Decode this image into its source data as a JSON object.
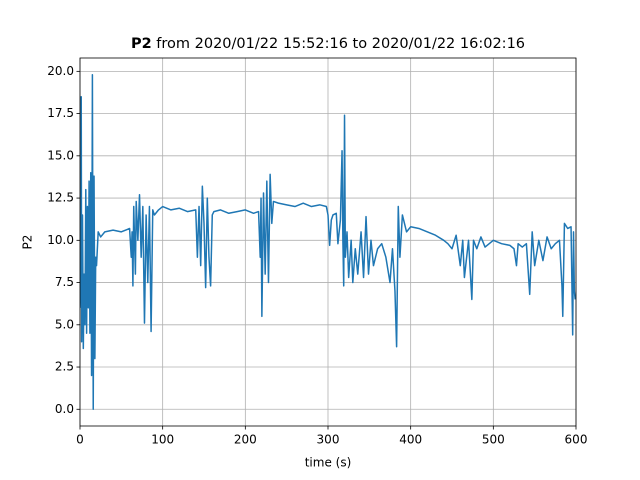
{
  "chart_data": {
    "type": "line",
    "title": {
      "bold": "P2",
      "rest": "from 2020/01/22 15:52:16 to 2020/01/22 16:02:16"
    },
    "xlabel": "time (s)",
    "ylabel": "P2",
    "xlim": [
      0,
      600
    ],
    "ylim": [
      -0.99,
      20.79
    ],
    "xticks": [
      0,
      100,
      200,
      300,
      400,
      500,
      600
    ],
    "yticks": [
      {
        "value": 0,
        "label": "0.0"
      },
      {
        "value": 2.5,
        "label": "2.5"
      },
      {
        "value": 5,
        "label": "5.0"
      },
      {
        "value": 7.5,
        "label": "7.5"
      },
      {
        "value": 10,
        "label": "10.0"
      },
      {
        "value": 12.5,
        "label": "12.5"
      },
      {
        "value": 15,
        "label": "15.0"
      },
      {
        "value": 17.5,
        "label": "17.5"
      },
      {
        "value": 20,
        "label": "20.0"
      }
    ],
    "grid": true,
    "series": [
      {
        "color": "#1f77b4",
        "x": [
          0,
          1,
          1.5,
          2,
          3,
          4,
          5,
          6,
          7,
          8,
          9,
          10,
          11,
          12,
          13,
          14,
          15,
          16,
          17,
          18,
          19,
          20,
          22,
          25,
          30,
          40,
          50,
          60,
          62,
          63,
          64,
          65,
          67,
          68,
          70,
          72,
          74,
          76,
          78,
          80,
          82,
          84,
          86,
          88,
          90,
          95,
          100,
          110,
          120,
          130,
          140,
          142,
          144,
          146,
          148,
          150,
          152,
          154,
          156,
          158,
          160,
          162,
          170,
          180,
          190,
          200,
          210,
          216,
          218,
          219,
          220,
          222,
          224,
          226,
          228,
          230,
          232,
          234,
          240,
          250,
          260,
          270,
          280,
          290,
          298,
          300,
          302,
          304,
          306,
          310,
          312,
          315,
          317,
          318,
          319,
          320,
          321,
          323,
          325,
          328,
          330,
          333,
          336,
          340,
          343,
          346,
          349,
          352,
          355,
          360,
          365,
          370,
          375,
          378,
          381,
          383,
          385,
          387,
          390,
          395,
          400,
          410,
          420,
          430,
          440,
          445,
          450,
          455,
          460,
          463,
          465,
          470,
          474,
          476,
          480,
          485,
          490,
          500,
          510,
          520,
          525,
          528,
          530,
          535,
          540,
          544,
          547,
          550,
          555,
          560,
          565,
          570,
          575,
          580,
          583,
          584,
          586,
          590,
          594,
          596,
          597,
          598,
          599
        ],
        "values": [
          6,
          9,
          18.5,
          4,
          11.5,
          3.6,
          8,
          5,
          13,
          4.5,
          12,
          6,
          13.5,
          4.5,
          14,
          2,
          19.8,
          0,
          13.8,
          3,
          9,
          8.5,
          10.5,
          10.2,
          10.5,
          10.6,
          10.5,
          10.7,
          9,
          10.5,
          7.3,
          12,
          8,
          12.3,
          10,
          12.7,
          9,
          12,
          5.1,
          11.5,
          7.5,
          12,
          4.6,
          11.8,
          11.5,
          11.8,
          12,
          11.8,
          11.9,
          11.7,
          11.8,
          9,
          12,
          8.5,
          13.2,
          11,
          7.2,
          12.5,
          9,
          7.3,
          11.5,
          11.7,
          11.8,
          11.6,
          11.7,
          11.8,
          11.6,
          11.7,
          9,
          12.5,
          5.5,
          12.8,
          8,
          13.5,
          7.5,
          13.9,
          11,
          12.3,
          12.2,
          12.1,
          12,
          12.2,
          12,
          12.1,
          12,
          11.5,
          9.7,
          11.2,
          11.5,
          11.6,
          9.8,
          11.2,
          15.3,
          10,
          7.3,
          17.4,
          9,
          10.5,
          7.8,
          10,
          7.5,
          9.5,
          8,
          10.5,
          7.8,
          11.4,
          8,
          10,
          8.5,
          9.5,
          9.8,
          9,
          7.5,
          9.5,
          7,
          3.7,
          12,
          9,
          11.5,
          10.5,
          10.8,
          10.7,
          10.5,
          10.3,
          10,
          9.8,
          9.5,
          10.3,
          8.5,
          10,
          7.8,
          10,
          6.5,
          10,
          9.5,
          10.2,
          9.6,
          10,
          9.8,
          9.7,
          9.5,
          8.5,
          9.8,
          9.6,
          9.8,
          6.8,
          10.5,
          8.5,
          10,
          8.8,
          10.2,
          9.5,
          9.8,
          10,
          7.3,
          5.5,
          11,
          10.7,
          10.8,
          4.4,
          10.5,
          7,
          6.5
        ]
      }
    ]
  }
}
